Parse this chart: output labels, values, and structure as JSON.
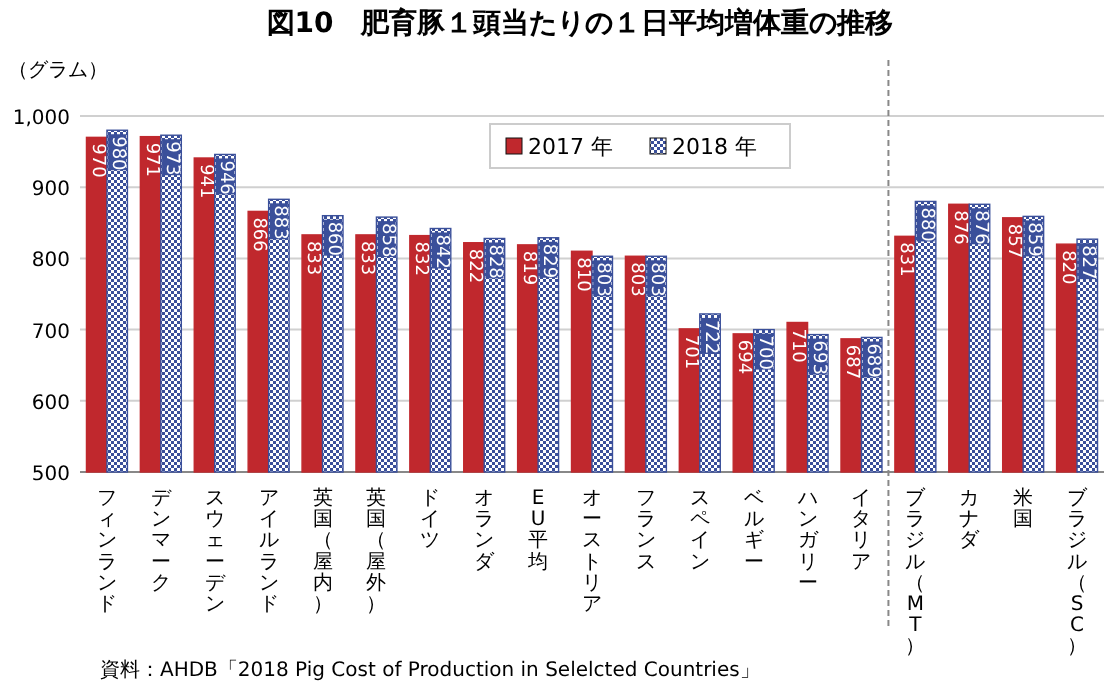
{
  "chart_data": {
    "type": "bar",
    "title": "図10　肥育豚１頭当たりの１日平均増体重の推移",
    "ylabel": "（グラム）",
    "categories": [
      "フィンランド",
      "デンマーク",
      "スウェーデン",
      "アイルランド",
      "英国（屋内）",
      "英国（屋外）",
      "ドイツ",
      "オランダ",
      "EU平均",
      "オーストリア",
      "フランス",
      "スペイン",
      "ベルギー",
      "ハンガリー",
      "イタリア",
      "ブラジル（MT）",
      "カナダ",
      "米国",
      "ブラジル（SC）"
    ],
    "series": [
      {
        "name": "2017 年",
        "color": "#c0282d",
        "values": [
          970,
          971,
          941,
          866,
          833,
          833,
          832,
          822,
          819,
          810,
          803,
          701,
          694,
          710,
          687,
          831,
          876,
          857,
          820
        ]
      },
      {
        "name": "2018 年",
        "color": "#3a4f9a",
        "values": [
          980,
          973,
          946,
          883,
          860,
          858,
          842,
          828,
          829,
          803,
          803,
          722,
          700,
          693,
          689,
          880,
          876,
          859,
          827
        ]
      }
    ],
    "ylim": [
      500,
      1000
    ],
    "yticks": [
      500,
      600,
      700,
      800,
      900,
      {
        "value": 1000,
        "label": "1,000"
      }
    ],
    "grid": "y",
    "legend": "top",
    "data_labels": true,
    "annotations": [
      "資料：AHDB「2018 Pig Cost of Production in Selelcted Countries」"
    ]
  }
}
